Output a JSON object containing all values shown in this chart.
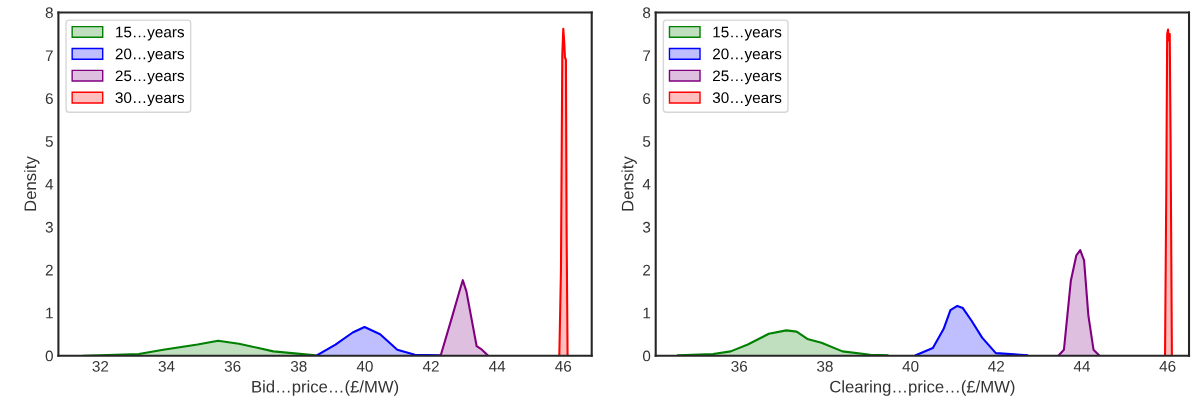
{
  "chart_data": [
    {
      "type": "area",
      "xlabel": "Bid…price…(£/MW)",
      "ylabel": "Density",
      "xlim": [
        30.73,
        46.86
      ],
      "xticks": [
        32,
        34,
        36,
        38,
        40,
        42,
        44,
        46
      ],
      "ylim": [
        0,
        8
      ],
      "yticks": [
        0,
        1,
        2,
        3,
        4,
        5,
        6,
        7,
        8
      ],
      "grid": false,
      "legend": "top left",
      "series": [
        {
          "name": "15…years",
          "color": "#008000",
          "x": [
            31.5,
            33.16,
            33.9,
            34.94,
            35.56,
            36.19,
            37.23,
            38.48
          ],
          "values": [
            0,
            0.04,
            0.14,
            0.26,
            0.35,
            0.28,
            0.1,
            0.01
          ]
        },
        {
          "name": "20…years",
          "color": "#0000ff",
          "x": [
            38.53,
            39.11,
            39.63,
            39.99,
            40.46,
            40.98,
            41.51,
            42.24
          ],
          "values": [
            0,
            0.26,
            0.54,
            0.67,
            0.5,
            0.14,
            0.02,
            0.01
          ]
        },
        {
          "name": "25…years",
          "color": "#800080",
          "x": [
            42.29,
            42.65,
            42.86,
            42.96,
            43.07,
            43.38,
            43.54,
            43.7
          ],
          "values": [
            0,
            0.94,
            1.5,
            1.76,
            1.5,
            0.22,
            0.14,
            0.02
          ]
        },
        {
          "name": "30…years",
          "color": "#ff0000",
          "x": [
            45.88,
            45.93,
            45.97,
            46.0,
            46.03,
            46.05,
            46.08,
            46.1,
            46.13
          ],
          "values": [
            0,
            2,
            7.0,
            7.62,
            7.3,
            6.95,
            6.9,
            3,
            0
          ]
        }
      ]
    },
    {
      "type": "area",
      "xlabel": "Clearing…price…(£/MW)",
      "ylabel": "Density",
      "xlim": [
        34.05,
        46.5
      ],
      "xticks": [
        36,
        38,
        40,
        42,
        44,
        46
      ],
      "ylim": [
        0,
        8
      ],
      "yticks": [
        0,
        1,
        2,
        3,
        4,
        5,
        6,
        7,
        8
      ],
      "grid": false,
      "legend": "top left",
      "series": [
        {
          "name": "15…years",
          "color": "#008000",
          "x": [
            34.57,
            35.39,
            35.8,
            36.2,
            36.69,
            37.1,
            37.34,
            37.59,
            37.92,
            38.41,
            39.06,
            39.46
          ],
          "values": [
            0.01,
            0.04,
            0.1,
            0.26,
            0.51,
            0.59,
            0.56,
            0.39,
            0.3,
            0.1,
            0.02,
            0.01
          ]
        },
        {
          "name": "20…years",
          "color": "#0000ff",
          "x": [
            40.12,
            40.52,
            40.77,
            40.93,
            41.09,
            41.22,
            41.42,
            41.67,
            41.99,
            42.72
          ],
          "values": [
            0.01,
            0.18,
            0.62,
            1.06,
            1.16,
            1.11,
            0.82,
            0.42,
            0.06,
            0.01
          ]
        },
        {
          "name": "25…years",
          "color": "#800080",
          "x": [
            43.46,
            43.58,
            43.74,
            43.87,
            43.96,
            44.05,
            44.15,
            44.27,
            44.4
          ],
          "values": [
            0.01,
            0.14,
            1.74,
            2.34,
            2.46,
            2.22,
            0.94,
            0.14,
            0.01
          ]
        },
        {
          "name": "30…years",
          "color": "#ff0000",
          "x": [
            45.94,
            45.97,
            45.99,
            46.01,
            46.03,
            46.05,
            46.07,
            46.1
          ],
          "values": [
            0,
            4,
            7.5,
            7.6,
            7.35,
            7.5,
            5,
            0
          ]
        }
      ]
    }
  ]
}
